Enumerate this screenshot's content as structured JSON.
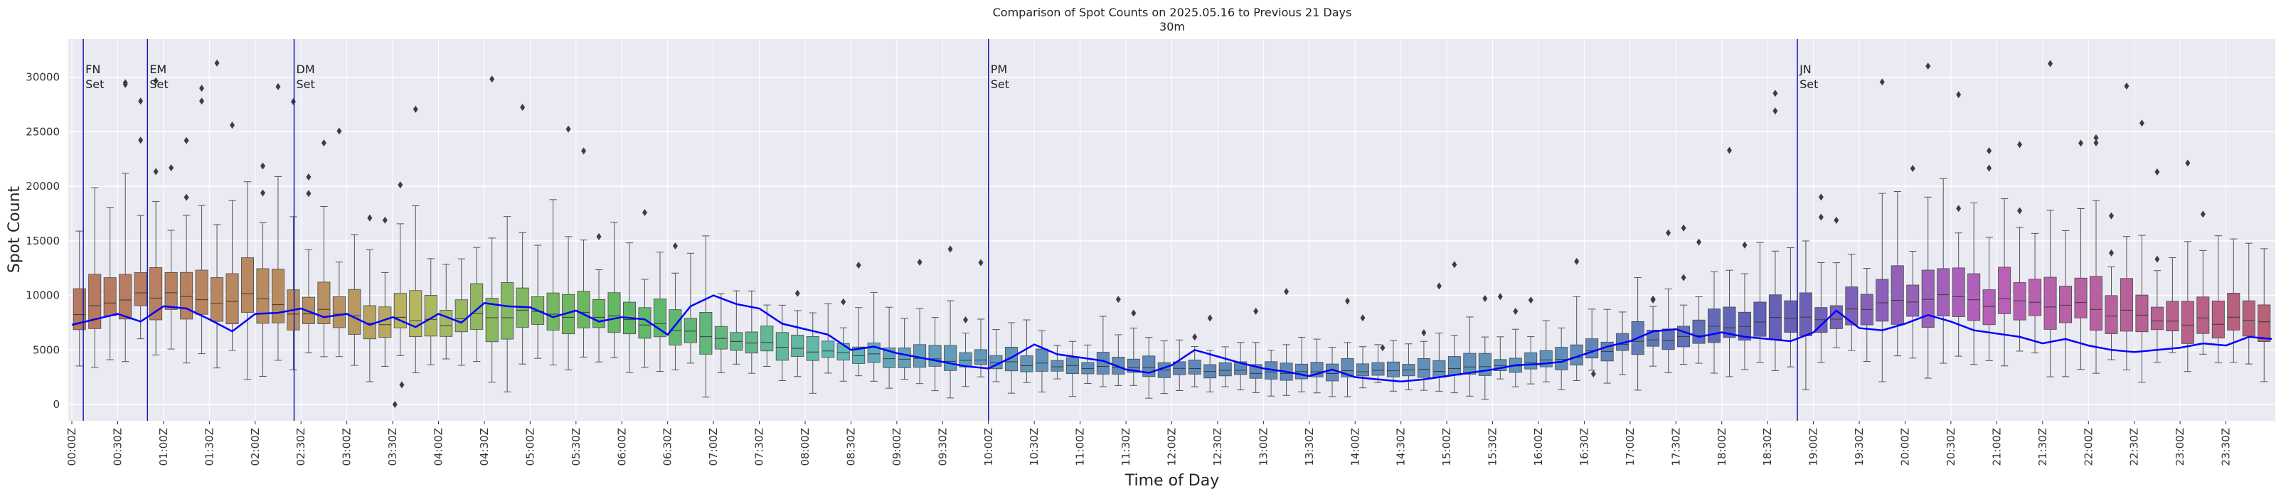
{
  "chart_data": {
    "type": "boxplot-with-line",
    "title": "Comparison of Spot Counts on 2025.05.16 to Previous 21 Days",
    "subtitle": "30m",
    "xlabel": "Time of Day",
    "ylabel": "Spot Count",
    "ylim": [
      -1500,
      33500
    ],
    "yticks": [
      0,
      5000,
      10000,
      15000,
      20000,
      25000,
      30000
    ],
    "xticks": [
      "00:00Z",
      "00:30Z",
      "01:00Z",
      "01:30Z",
      "02:00Z",
      "02:30Z",
      "03:00Z",
      "03:30Z",
      "04:00Z",
      "04:30Z",
      "05:00Z",
      "05:30Z",
      "06:00Z",
      "06:30Z",
      "07:00Z",
      "07:30Z",
      "08:00Z",
      "08:30Z",
      "09:00Z",
      "09:30Z",
      "10:00Z",
      "10:30Z",
      "11:00Z",
      "11:30Z",
      "12:00Z",
      "12:30Z",
      "13:00Z",
      "13:30Z",
      "14:00Z",
      "14:30Z",
      "15:00Z",
      "15:30Z",
      "16:00Z",
      "16:30Z",
      "17:00Z",
      "17:30Z",
      "18:00Z",
      "18:30Z",
      "19:00Z",
      "19:30Z",
      "20:00Z",
      "20:30Z",
      "21:00Z",
      "21:30Z",
      "22:00Z",
      "22:30Z",
      "23:00Z",
      "23:30Z"
    ],
    "grid": true,
    "events": [
      {
        "time": 0.25,
        "line1": "FN",
        "line2": "Set"
      },
      {
        "time": 1.65,
        "line1": "EM",
        "line2": "Set"
      },
      {
        "time": 4.85,
        "line1": "DM",
        "line2": "Set"
      },
      {
        "time": 20.0,
        "line1": "PM",
        "line2": "Set"
      },
      {
        "time": 37.65,
        "line1": "JN",
        "line2": "Set"
      }
    ],
    "x_unit": "half-hour index (0 = 00:00Z, 48 = 24:00Z)",
    "median_profile": [
      [
        0,
        7800
      ],
      [
        1,
        9500
      ],
      [
        2,
        10200
      ],
      [
        3,
        9800
      ],
      [
        4,
        9800
      ],
      [
        5,
        8600
      ],
      [
        6,
        8000
      ],
      [
        7,
        7600
      ],
      [
        8,
        7600
      ],
      [
        9,
        8000
      ],
      [
        10,
        8300
      ],
      [
        11,
        8200
      ],
      [
        12,
        7800
      ],
      [
        13,
        6900
      ],
      [
        14,
        6000
      ],
      [
        15,
        5600
      ],
      [
        16,
        5000
      ],
      [
        17,
        4600
      ],
      [
        18,
        4200
      ],
      [
        19,
        4000
      ],
      [
        20,
        3900
      ],
      [
        21,
        3700
      ],
      [
        22,
        3500
      ],
      [
        23,
        3400
      ],
      [
        24,
        3300
      ],
      [
        25,
        3100
      ],
      [
        26,
        3000
      ],
      [
        27,
        2950
      ],
      [
        28,
        2950
      ],
      [
        29,
        3000
      ],
      [
        30,
        3200
      ],
      [
        31,
        3500
      ],
      [
        32,
        3900
      ],
      [
        33,
        4700
      ],
      [
        34,
        5500
      ],
      [
        35,
        6300
      ],
      [
        36,
        7000
      ],
      [
        37,
        7500
      ],
      [
        38,
        8000
      ],
      [
        39,
        8600
      ],
      [
        40,
        9200
      ],
      [
        41,
        9600
      ],
      [
        42,
        9500
      ],
      [
        43,
        9200
      ],
      [
        44,
        8800
      ],
      [
        45,
        8200
      ],
      [
        46,
        7600
      ],
      [
        47,
        7600
      ],
      [
        48,
        7800
      ]
    ],
    "today_line": {
      "name": "2025.05.16",
      "color": "#0000ff",
      "points": [
        [
          0,
          7300
        ],
        [
          0.5,
          7800
        ],
        [
          1,
          8300
        ],
        [
          1.5,
          7600
        ],
        [
          2,
          9000
        ],
        [
          2.5,
          8800
        ],
        [
          3,
          7800
        ],
        [
          3.5,
          6700
        ],
        [
          4,
          8300
        ],
        [
          4.5,
          8400
        ],
        [
          5,
          8800
        ],
        [
          5.5,
          8000
        ],
        [
          6,
          8300
        ],
        [
          6.5,
          7300
        ],
        [
          7,
          8000
        ],
        [
          7.5,
          7100
        ],
        [
          8,
          8300
        ],
        [
          8.5,
          7500
        ],
        [
          9,
          9300
        ],
        [
          9.5,
          9000
        ],
        [
          10,
          8900
        ],
        [
          10.5,
          8000
        ],
        [
          11,
          8600
        ],
        [
          11.5,
          7600
        ],
        [
          12,
          8000
        ],
        [
          12.5,
          7800
        ],
        [
          13,
          6400
        ],
        [
          13.5,
          9000
        ],
        [
          14,
          10000
        ],
        [
          14.5,
          9200
        ],
        [
          15,
          8800
        ],
        [
          15.5,
          7400
        ],
        [
          16,
          6900
        ],
        [
          16.5,
          6400
        ],
        [
          17,
          5000
        ],
        [
          17.5,
          5300
        ],
        [
          18,
          4700
        ],
        [
          18.5,
          4300
        ],
        [
          19,
          3900
        ],
        [
          19.5,
          3500
        ],
        [
          20,
          3300
        ],
        [
          20.5,
          4300
        ],
        [
          21,
          5500
        ],
        [
          21.5,
          4600
        ],
        [
          22,
          4300
        ],
        [
          22.5,
          4000
        ],
        [
          23,
          3200
        ],
        [
          23.5,
          2900
        ],
        [
          24,
          3600
        ],
        [
          24.5,
          5000
        ],
        [
          25,
          4400
        ],
        [
          25.5,
          3800
        ],
        [
          26,
          3300
        ],
        [
          26.5,
          3000
        ],
        [
          27,
          2600
        ],
        [
          27.5,
          3200
        ],
        [
          28,
          2500
        ],
        [
          28.5,
          2300
        ],
        [
          29,
          2100
        ],
        [
          29.5,
          2300
        ],
        [
          30,
          2600
        ],
        [
          30.5,
          2900
        ],
        [
          31,
          3200
        ],
        [
          31.5,
          3600
        ],
        [
          32,
          3700
        ],
        [
          32.5,
          3900
        ],
        [
          33,
          4600
        ],
        [
          33.5,
          5300
        ],
        [
          34,
          5800
        ],
        [
          34.5,
          6700
        ],
        [
          35,
          6900
        ],
        [
          35.5,
          6200
        ],
        [
          36,
          6600
        ],
        [
          36.5,
          6200
        ],
        [
          37,
          6000
        ],
        [
          37.5,
          5800
        ],
        [
          38,
          6600
        ],
        [
          38.5,
          8600
        ],
        [
          39,
          7000
        ],
        [
          39.5,
          6800
        ],
        [
          40,
          7400
        ],
        [
          40.5,
          8200
        ],
        [
          41,
          7600
        ],
        [
          41.5,
          6800
        ],
        [
          42,
          6500
        ],
        [
          42.5,
          6200
        ],
        [
          43,
          5600
        ],
        [
          43.5,
          6000
        ],
        [
          44,
          5400
        ],
        [
          44.5,
          5000
        ],
        [
          45,
          4800
        ],
        [
          45.5,
          5000
        ],
        [
          46,
          5200
        ],
        [
          46.5,
          5600
        ],
        [
          47,
          5400
        ],
        [
          47.5,
          6200
        ],
        [
          48,
          6000
        ]
      ]
    }
  }
}
